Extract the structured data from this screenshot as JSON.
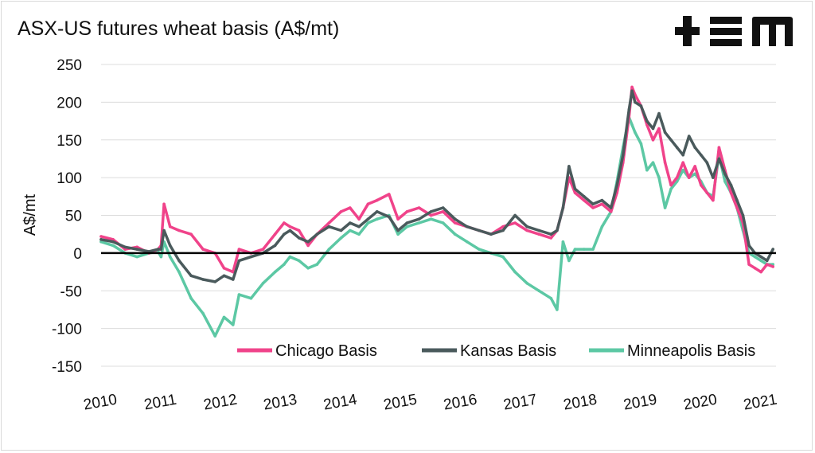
{
  "chart_data": {
    "type": "line",
    "title": "ASX-US futures wheat basis (A$/mt)",
    "ylabel": "A$/mt",
    "xlabel": "",
    "ylim": [
      -150,
      250
    ],
    "yticks": [
      250,
      200,
      150,
      100,
      50,
      0,
      -50,
      -100,
      -150
    ],
    "xlim": [
      2010.0,
      2021.25
    ],
    "xtick_labels": [
      "2010",
      "2011",
      "2012",
      "2013",
      "2014",
      "2015",
      "2016",
      "2017",
      "2018",
      "2019",
      "2020",
      "2021"
    ],
    "grid": true,
    "legend_position": "bottom-right",
    "series": [
      {
        "name": "Chicago Basis",
        "color": "#f0438a",
        "x": [
          2010.0,
          2010.2,
          2010.4,
          2010.6,
          2010.8,
          2010.95,
          2011.0,
          2011.05,
          2011.15,
          2011.3,
          2011.5,
          2011.7,
          2011.9,
          2012.05,
          2012.2,
          2012.3,
          2012.5,
          2012.7,
          2012.9,
          2013.05,
          2013.15,
          2013.3,
          2013.45,
          2013.6,
          2013.8,
          2014.0,
          2014.15,
          2014.3,
          2014.45,
          2014.6,
          2014.8,
          2014.95,
          2015.1,
          2015.3,
          2015.5,
          2015.7,
          2015.9,
          2016.1,
          2016.3,
          2016.5,
          2016.7,
          2016.9,
          2017.1,
          2017.3,
          2017.5,
          2017.6,
          2017.7,
          2017.8,
          2017.9,
          2018.05,
          2018.2,
          2018.35,
          2018.5,
          2018.6,
          2018.7,
          2018.8,
          2018.85,
          2018.9,
          2019.0,
          2019.1,
          2019.2,
          2019.3,
          2019.4,
          2019.5,
          2019.6,
          2019.7,
          2019.8,
          2019.9,
          2020.0,
          2020.1,
          2020.2,
          2020.3,
          2020.4,
          2020.5,
          2020.6,
          2020.7,
          2020.8,
          2020.9,
          2021.0,
          2021.1,
          2021.2
        ],
        "values": [
          22,
          18,
          5,
          8,
          0,
          5,
          10,
          65,
          35,
          30,
          25,
          5,
          0,
          -20,
          -25,
          5,
          0,
          5,
          25,
          40,
          35,
          30,
          10,
          25,
          40,
          55,
          60,
          45,
          65,
          70,
          78,
          45,
          55,
          60,
          50,
          55,
          40,
          35,
          30,
          25,
          35,
          40,
          30,
          25,
          20,
          30,
          60,
          100,
          80,
          70,
          60,
          65,
          55,
          80,
          120,
          180,
          220,
          210,
          195,
          170,
          150,
          165,
          120,
          90,
          100,
          120,
          100,
          115,
          90,
          80,
          70,
          140,
          110,
          80,
          60,
          40,
          -15,
          -20,
          -25,
          -15,
          -18
        ]
      },
      {
        "name": "Kansas Basis",
        "color": "#4a5a5c",
        "x": [
          2010.0,
          2010.2,
          2010.4,
          2010.6,
          2010.8,
          2010.95,
          2011.0,
          2011.05,
          2011.15,
          2011.3,
          2011.5,
          2011.7,
          2011.9,
          2012.05,
          2012.2,
          2012.3,
          2012.5,
          2012.7,
          2012.9,
          2013.05,
          2013.15,
          2013.3,
          2013.45,
          2013.6,
          2013.8,
          2014.0,
          2014.15,
          2014.3,
          2014.45,
          2014.6,
          2014.8,
          2014.95,
          2015.1,
          2015.3,
          2015.5,
          2015.7,
          2015.9,
          2016.1,
          2016.3,
          2016.5,
          2016.7,
          2016.9,
          2017.1,
          2017.3,
          2017.5,
          2017.6,
          2017.7,
          2017.8,
          2017.9,
          2018.05,
          2018.2,
          2018.35,
          2018.5,
          2018.6,
          2018.7,
          2018.8,
          2018.85,
          2018.9,
          2019.0,
          2019.1,
          2019.2,
          2019.3,
          2019.4,
          2019.5,
          2019.6,
          2019.7,
          2019.8,
          2019.9,
          2020.0,
          2020.1,
          2020.2,
          2020.3,
          2020.4,
          2020.5,
          2020.6,
          2020.7,
          2020.8,
          2020.9,
          2021.0,
          2021.1,
          2021.2
        ],
        "values": [
          18,
          15,
          8,
          5,
          2,
          5,
          5,
          30,
          10,
          -10,
          -30,
          -35,
          -38,
          -30,
          -35,
          -10,
          -5,
          0,
          10,
          25,
          30,
          20,
          15,
          25,
          35,
          30,
          40,
          35,
          45,
          55,
          48,
          30,
          40,
          45,
          55,
          60,
          45,
          35,
          30,
          25,
          30,
          50,
          35,
          30,
          25,
          30,
          60,
          115,
          85,
          75,
          65,
          70,
          60,
          90,
          130,
          190,
          215,
          200,
          195,
          175,
          165,
          185,
          160,
          150,
          140,
          130,
          155,
          140,
          130,
          120,
          100,
          125,
          105,
          90,
          70,
          50,
          10,
          0,
          -5,
          -10,
          5
        ]
      },
      {
        "name": "Minneapolis Basis",
        "color": "#5cc8a4",
        "x": [
          2010.0,
          2010.2,
          2010.4,
          2010.6,
          2010.8,
          2010.95,
          2011.0,
          2011.05,
          2011.15,
          2011.3,
          2011.5,
          2011.7,
          2011.9,
          2012.05,
          2012.2,
          2012.3,
          2012.5,
          2012.7,
          2012.9,
          2013.05,
          2013.15,
          2013.3,
          2013.45,
          2013.6,
          2013.8,
          2014.0,
          2014.15,
          2014.3,
          2014.45,
          2014.6,
          2014.8,
          2014.95,
          2015.1,
          2015.3,
          2015.5,
          2015.7,
          2015.9,
          2016.1,
          2016.3,
          2016.5,
          2016.7,
          2016.9,
          2017.1,
          2017.3,
          2017.5,
          2017.6,
          2017.7,
          2017.8,
          2017.9,
          2018.05,
          2018.2,
          2018.35,
          2018.5,
          2018.6,
          2018.7,
          2018.8,
          2018.85,
          2018.9,
          2019.0,
          2019.1,
          2019.2,
          2019.3,
          2019.4,
          2019.5,
          2019.6,
          2019.7,
          2019.8,
          2019.9,
          2020.0,
          2020.1,
          2020.2,
          2020.3,
          2020.4,
          2020.5,
          2020.6,
          2020.7,
          2020.8,
          2020.9,
          2021.0,
          2021.1,
          2021.2
        ],
        "values": [
          15,
          10,
          0,
          -5,
          0,
          2,
          -5,
          15,
          -5,
          -25,
          -60,
          -80,
          -110,
          -85,
          -95,
          -55,
          -60,
          -40,
          -25,
          -15,
          -5,
          -10,
          -20,
          -15,
          5,
          20,
          30,
          25,
          40,
          45,
          50,
          25,
          35,
          40,
          45,
          40,
          25,
          15,
          5,
          0,
          -5,
          -25,
          -40,
          -50,
          -60,
          -75,
          15,
          -10,
          5,
          5,
          5,
          35,
          55,
          95,
          140,
          180,
          170,
          160,
          145,
          110,
          120,
          100,
          60,
          85,
          95,
          110,
          100,
          105,
          95,
          80,
          75,
          130,
          95,
          80,
          60,
          30,
          0,
          -5,
          -10,
          -15,
          -15
        ]
      }
    ]
  }
}
